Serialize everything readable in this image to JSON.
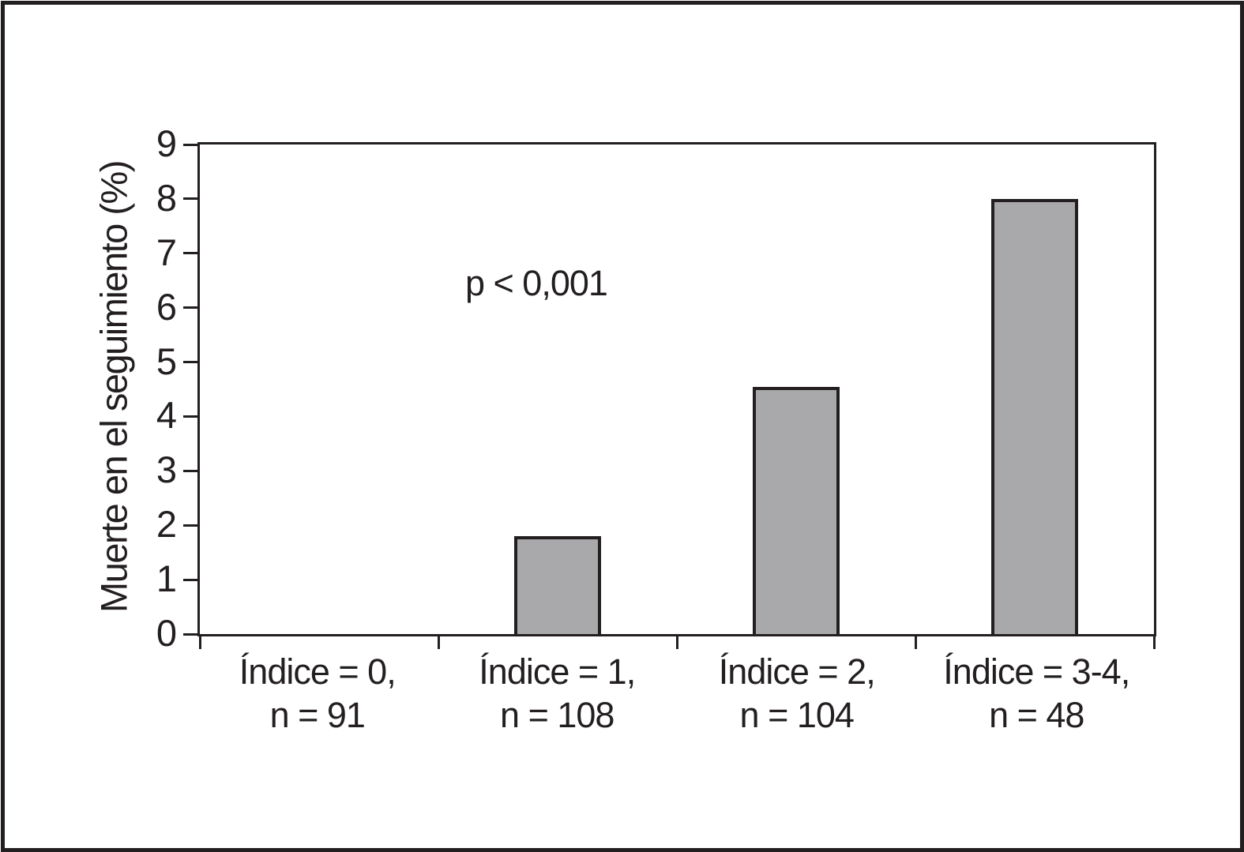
{
  "figure": {
    "background": "#ffffff",
    "border_color": "#231f20"
  },
  "chart_data": {
    "type": "bar",
    "title": "",
    "xlabel": "",
    "ylabel": "Muerte en el seguimiento (%)",
    "ylim": [
      0,
      9
    ],
    "yticks": [
      0,
      1,
      2,
      3,
      4,
      5,
      6,
      7,
      8,
      9
    ],
    "grid": false,
    "legend_position": "none",
    "annotation": "p < 0,001",
    "categories": [
      {
        "line1": "Índice = 0,",
        "line2": "n = 91"
      },
      {
        "line1": "Índice = 1,",
        "line2": "n = 108"
      },
      {
        "line1": "Índice = 2,",
        "line2": "n = 104"
      },
      {
        "line1": "Índice = 3-4,",
        "line2": "n = 48"
      }
    ],
    "values": [
      0,
      1.8,
      4.55,
      8.0
    ],
    "bar_color": "#a9a9ab",
    "bar_border_color": "#231f20",
    "axis_color": "#231f20"
  }
}
